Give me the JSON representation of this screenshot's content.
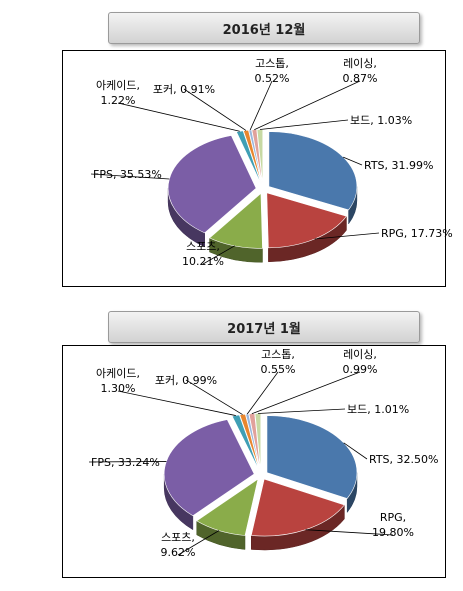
{
  "chart_data": [
    {
      "type": "pie",
      "title": "2016년 12월",
      "unit": "%",
      "slices": [
        {
          "label": "RTS",
          "value": 31.99,
          "text": "RTS, 31.99%",
          "color": "#4a78ac"
        },
        {
          "label": "RPG",
          "value": 17.73,
          "text": "RPG, 17.73%",
          "color": "#b9433f"
        },
        {
          "label": "스포츠",
          "value": 10.21,
          "text": "스포츠,|10.21%",
          "color": "#8aac4a"
        },
        {
          "label": "FPS",
          "value": 35.53,
          "text": "FPS, 35.53%",
          "color": "#7b5ea6"
        },
        {
          "label": "아케이드",
          "value": 1.22,
          "text": "아케이드,|1.22%",
          "color": "#3f9fb5"
        },
        {
          "label": "포커",
          "value": 0.91,
          "text": "포커, 0.91%",
          "color": "#e8862e"
        },
        {
          "label": "고스톱",
          "value": 0.52,
          "text": "고스톱,|0.52%",
          "color": "#9ab7dd"
        },
        {
          "label": "레이싱",
          "value": 0.87,
          "text": "레이싱,|0.87%",
          "color": "#e1a19b"
        },
        {
          "label": "보드",
          "value": 1.03,
          "text": "보드, 1.03%",
          "color": "#c7d9a3"
        }
      ]
    },
    {
      "type": "pie",
      "title": "2017년 1월",
      "unit": "%",
      "slices": [
        {
          "label": "RTS",
          "value": 32.5,
          "text": "RTS, 32.50%",
          "color": "#4a78ac"
        },
        {
          "label": "RPG",
          "value": 19.8,
          "text": "RPG,|19.80%",
          "color": "#b9433f"
        },
        {
          "label": "스포츠",
          "value": 9.62,
          "text": "스포츠,|9.62%",
          "color": "#8aac4a"
        },
        {
          "label": "FPS",
          "value": 33.24,
          "text": "FPS, 33.24%",
          "color": "#7b5ea6"
        },
        {
          "label": "아케이드",
          "value": 1.3,
          "text": "아케이드,|1.30%",
          "color": "#3f9fb5"
        },
        {
          "label": "포커",
          "value": 0.99,
          "text": "포커, 0.99%",
          "color": "#e8862e"
        },
        {
          "label": "고스톱",
          "value": 0.55,
          "text": "고스톱,|0.55%",
          "color": "#9ab7dd"
        },
        {
          "label": "레이싱",
          "value": 0.99,
          "text": "레이싱,|0.99%",
          "color": "#e1a19b"
        },
        {
          "label": "보드",
          "value": 1.01,
          "text": "보드, 1.01%",
          "color": "#c7d9a3"
        }
      ]
    }
  ]
}
